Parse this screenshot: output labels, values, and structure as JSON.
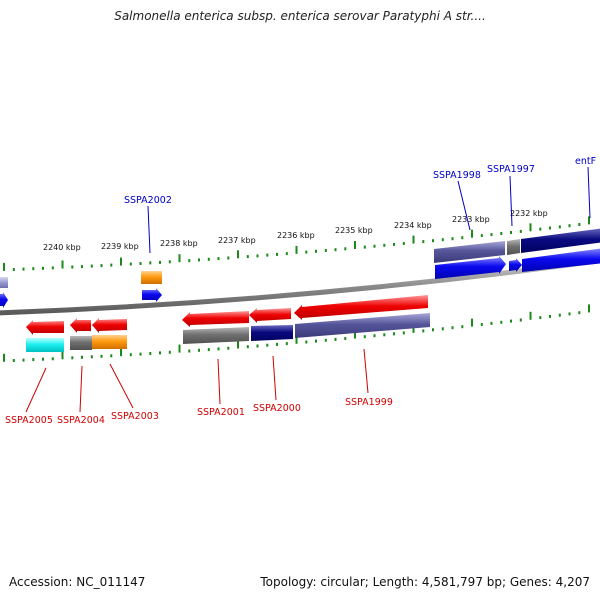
{
  "title": "Salmonella enterica subsp. enterica serovar Paratyphi A str....",
  "footer": {
    "accession": "Accession: NC_011147",
    "summary": "Topology: circular; Length: 4,581,797 bp; Genes: 4,207"
  },
  "colors": {
    "forward_label": "#0000c8",
    "reverse_label": "#d10000",
    "tick": "#1a8a1a",
    "backbone": "#8a8a8a"
  },
  "kbp_ticks": [
    "2240 kbp",
    "2239 kbp",
    "2238 kbp",
    "2237 kbp",
    "2236 kbp",
    "2235 kbp",
    "2234 kbp",
    "2233 kbp",
    "2232 kbp"
  ],
  "gene_labels": {
    "forward": [
      "SSPA2002",
      "SSPA1998",
      "SSPA1997",
      "entF"
    ],
    "reverse": [
      "SSPA2005",
      "SSPA2004",
      "SSPA2003",
      "SSPA2001",
      "SSPA2000",
      "SSPA1999"
    ]
  }
}
